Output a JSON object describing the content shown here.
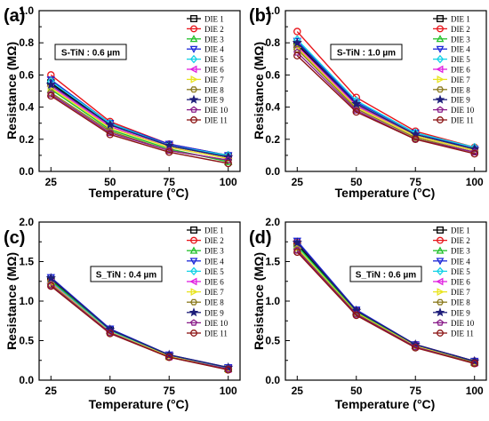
{
  "figure": {
    "panels": [
      "(a)",
      "(b)",
      "(c)",
      "(d)"
    ]
  },
  "series_style": [
    {
      "name": "DIE 1",
      "color": "#000000",
      "marker": "square"
    },
    {
      "name": "DIE 2",
      "color": "#e8141a",
      "marker": "circle"
    },
    {
      "name": "DIE 3",
      "color": "#22c02a",
      "marker": "triangle-up"
    },
    {
      "name": "DIE 4",
      "color": "#1c28d8",
      "marker": "triangle-down"
    },
    {
      "name": "DIE 5",
      "color": "#14d2e6",
      "marker": "diamond"
    },
    {
      "name": "DIE 6",
      "color": "#e020e0",
      "marker": "triangle-left"
    },
    {
      "name": "DIE 7",
      "color": "#e8e41e",
      "marker": "triangle-right"
    },
    {
      "name": "DIE 8",
      "color": "#8b7a1e",
      "marker": "hexagon"
    },
    {
      "name": "DIE 9",
      "color": "#1e1e7a",
      "marker": "star"
    },
    {
      "name": "DIE 10",
      "color": "#8a1e8a",
      "marker": "pentagon"
    },
    {
      "name": "DIE 11",
      "color": "#8b1414",
      "marker": "circle"
    }
  ],
  "chart_data": [
    {
      "panel": "(a)",
      "type": "line",
      "annotation": "S-TiN : 0.6 µm",
      "xlabel": "Temperature (°C)",
      "ylabel": "Resistance (MΩ)",
      "x": [
        25,
        50,
        75,
        100
      ],
      "xticks": [
        "25",
        "50",
        "75",
        "100"
      ],
      "yticks": [
        "0.0",
        "0.2",
        "0.4",
        "0.6",
        "0.8",
        "1.0"
      ],
      "ylim": [
        0,
        1.0
      ],
      "legend": "right",
      "series": [
        {
          "name": "DIE 1",
          "values": [
            0.55,
            0.29,
            0.16,
            0.09
          ]
        },
        {
          "name": "DIE 2",
          "values": [
            0.6,
            0.31,
            0.17,
            0.1
          ]
        },
        {
          "name": "DIE 3",
          "values": [
            0.51,
            0.26,
            0.14,
            0.06
          ]
        },
        {
          "name": "DIE 4",
          "values": [
            0.57,
            0.3,
            0.17,
            0.1
          ]
        },
        {
          "name": "DIE 5",
          "values": [
            0.56,
            0.3,
            0.16,
            0.1
          ]
        },
        {
          "name": "DIE 6",
          "values": [
            0.53,
            0.28,
            0.15,
            0.08
          ]
        },
        {
          "name": "DIE 7",
          "values": [
            0.52,
            0.27,
            0.15,
            0.08
          ]
        },
        {
          "name": "DIE 8",
          "values": [
            0.49,
            0.25,
            0.13,
            0.07
          ]
        },
        {
          "name": "DIE 9",
          "values": [
            0.54,
            0.29,
            0.16,
            0.09
          ]
        },
        {
          "name": "DIE 10",
          "values": [
            0.48,
            0.24,
            0.13,
            0.07
          ]
        },
        {
          "name": "DIE 11",
          "values": [
            0.47,
            0.23,
            0.12,
            0.05
          ]
        }
      ]
    },
    {
      "panel": "(b)",
      "type": "line",
      "annotation": "S-TiN : 1.0 µm",
      "xlabel": "Temperature (°C)",
      "ylabel": "Resistance (MΩ)",
      "x": [
        25,
        50,
        75,
        100
      ],
      "xticks": [
        "25",
        "50",
        "75",
        "100"
      ],
      "yticks": [
        "0.0",
        "0.2",
        "0.4",
        "0.6",
        "0.8",
        "1.0"
      ],
      "ylim": [
        0,
        1.0
      ],
      "legend": "right",
      "series": [
        {
          "name": "DIE 1",
          "values": [
            0.79,
            0.41,
            0.22,
            0.13
          ]
        },
        {
          "name": "DIE 2",
          "values": [
            0.87,
            0.46,
            0.25,
            0.15
          ]
        },
        {
          "name": "DIE 3",
          "values": [
            0.8,
            0.42,
            0.23,
            0.14
          ]
        },
        {
          "name": "DIE 4",
          "values": [
            0.81,
            0.43,
            0.24,
            0.14
          ]
        },
        {
          "name": "DIE 5",
          "values": [
            0.82,
            0.44,
            0.24,
            0.15
          ]
        },
        {
          "name": "DIE 6",
          "values": [
            0.78,
            0.41,
            0.22,
            0.13
          ]
        },
        {
          "name": "DIE 7",
          "values": [
            0.77,
            0.4,
            0.22,
            0.13
          ]
        },
        {
          "name": "DIE 8",
          "values": [
            0.76,
            0.39,
            0.21,
            0.12
          ]
        },
        {
          "name": "DIE 9",
          "values": [
            0.8,
            0.42,
            0.23,
            0.14
          ]
        },
        {
          "name": "DIE 10",
          "values": [
            0.74,
            0.38,
            0.2,
            0.12
          ]
        },
        {
          "name": "DIE 11",
          "values": [
            0.72,
            0.37,
            0.2,
            0.11
          ]
        }
      ]
    },
    {
      "panel": "(c)",
      "type": "line",
      "annotation": "S_TiN : 0.4 µm",
      "xlabel": "Temperature (°C)",
      "ylabel": "Resistance (MΩ)",
      "x": [
        25,
        50,
        75,
        100
      ],
      "xticks": [
        "25",
        "50",
        "75",
        "100"
      ],
      "yticks": [
        "0.0",
        "0.5",
        "1.0",
        "1.5",
        "2.0"
      ],
      "ylim": [
        0,
        2.0
      ],
      "legend": "right",
      "series": [
        {
          "name": "DIE 1",
          "values": [
            1.27,
            0.63,
            0.31,
            0.15
          ]
        },
        {
          "name": "DIE 2",
          "values": [
            1.25,
            0.62,
            0.3,
            0.15
          ]
        },
        {
          "name": "DIE 3",
          "values": [
            1.26,
            0.63,
            0.31,
            0.15
          ]
        },
        {
          "name": "DIE 4",
          "values": [
            1.3,
            0.65,
            0.32,
            0.16
          ]
        },
        {
          "name": "DIE 5",
          "values": [
            1.24,
            0.62,
            0.3,
            0.15
          ]
        },
        {
          "name": "DIE 6",
          "values": [
            1.23,
            0.61,
            0.3,
            0.14
          ]
        },
        {
          "name": "DIE 7",
          "values": [
            1.22,
            0.61,
            0.3,
            0.14
          ]
        },
        {
          "name": "DIE 8",
          "values": [
            1.21,
            0.6,
            0.29,
            0.14
          ]
        },
        {
          "name": "DIE 9",
          "values": [
            1.29,
            0.64,
            0.32,
            0.16
          ]
        },
        {
          "name": "DIE 10",
          "values": [
            1.2,
            0.6,
            0.29,
            0.14
          ]
        },
        {
          "name": "DIE 11",
          "values": [
            1.19,
            0.59,
            0.29,
            0.13
          ]
        }
      ]
    },
    {
      "panel": "(d)",
      "type": "line",
      "annotation": "S_TiN : 0.6 µm",
      "xlabel": "Temperature (°C)",
      "ylabel": "Resistance (MΩ)",
      "x": [
        25,
        50,
        75,
        100
      ],
      "xticks": [
        "25",
        "50",
        "75",
        "100"
      ],
      "yticks": [
        "0.0",
        "0.5",
        "1.0",
        "1.5",
        "2.0"
      ],
      "ylim": [
        0,
        2.0
      ],
      "legend": "right",
      "series": [
        {
          "name": "DIE 1",
          "values": [
            1.72,
            0.87,
            0.44,
            0.23
          ]
        },
        {
          "name": "DIE 2",
          "values": [
            1.75,
            0.88,
            0.45,
            0.24
          ]
        },
        {
          "name": "DIE 3",
          "values": [
            1.7,
            0.86,
            0.44,
            0.23
          ]
        },
        {
          "name": "DIE 4",
          "values": [
            1.76,
            0.89,
            0.45,
            0.24
          ]
        },
        {
          "name": "DIE 5",
          "values": [
            1.68,
            0.85,
            0.43,
            0.22
          ]
        },
        {
          "name": "DIE 6",
          "values": [
            1.66,
            0.84,
            0.43,
            0.22
          ]
        },
        {
          "name": "DIE 7",
          "values": [
            1.67,
            0.85,
            0.43,
            0.22
          ]
        },
        {
          "name": "DIE 8",
          "values": [
            1.65,
            0.84,
            0.42,
            0.22
          ]
        },
        {
          "name": "DIE 9",
          "values": [
            1.74,
            0.88,
            0.45,
            0.24
          ]
        },
        {
          "name": "DIE 10",
          "values": [
            1.64,
            0.83,
            0.42,
            0.21
          ]
        },
        {
          "name": "DIE 11",
          "values": [
            1.62,
            0.82,
            0.41,
            0.21
          ]
        }
      ]
    }
  ]
}
